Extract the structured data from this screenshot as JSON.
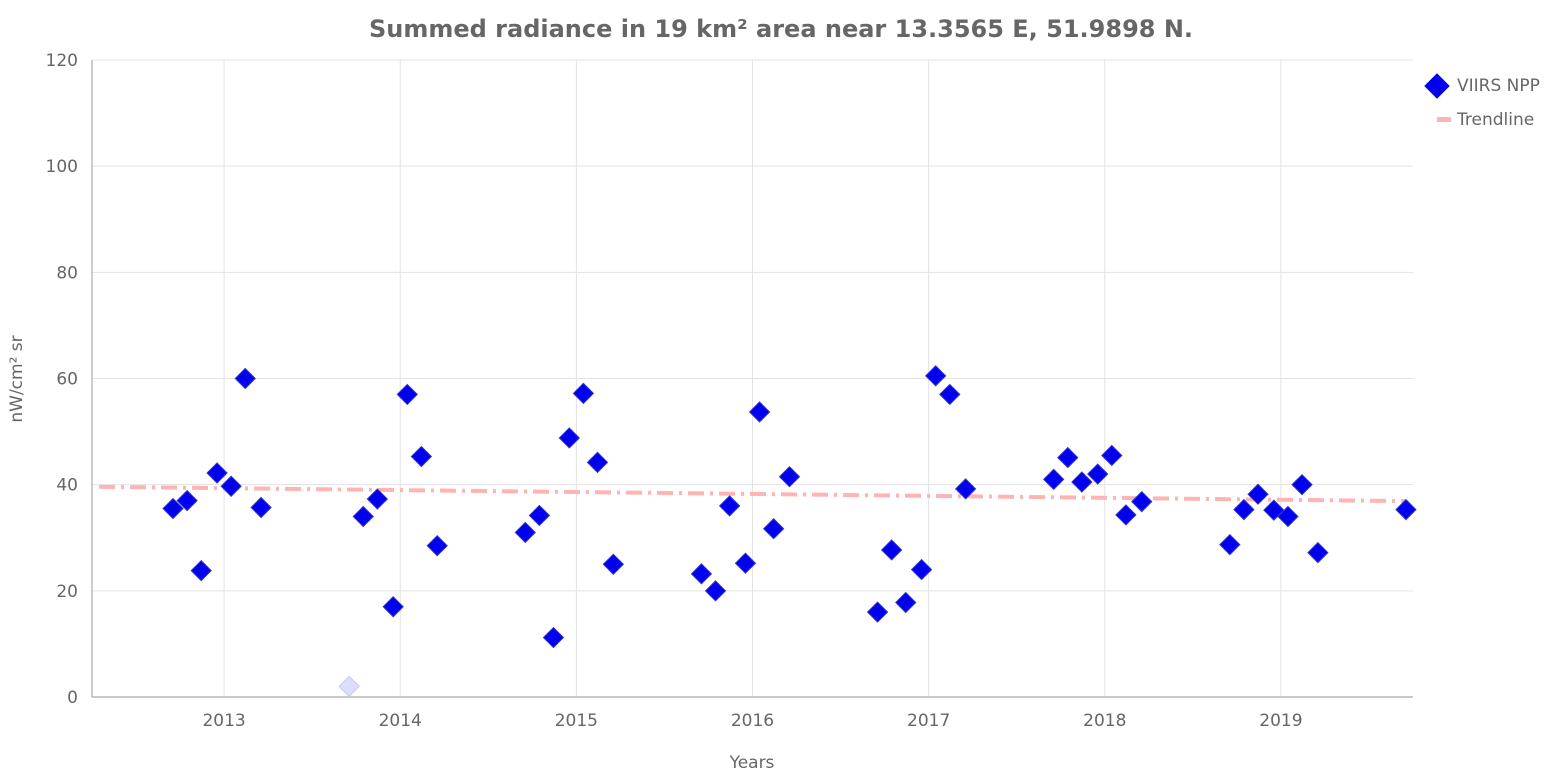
{
  "chart_data": {
    "type": "scatter",
    "title": "Summed radiance in 19 km² area near 13.3565 E, 51.9898 N.",
    "xlabel": "Years",
    "ylabel": "nW/cm² sr",
    "xlim": [
      2012.25,
      2019.75
    ],
    "ylim": [
      0,
      120
    ],
    "x_ticks": [
      2013,
      2014,
      2015,
      2016,
      2017,
      2018,
      2019
    ],
    "y_ticks": [
      0,
      20,
      40,
      60,
      80,
      100,
      120
    ],
    "grid": true,
    "legend_position": "top-right",
    "colors": {
      "marker": "#0000ee",
      "faded_marker": "#ddddff",
      "trendline": "#ffb3b3",
      "text": "#666666"
    },
    "series": [
      {
        "name": "VIIRS NPP",
        "marker": "diamond",
        "points": [
          {
            "x": 2012.71,
            "y": 35.5
          },
          {
            "x": 2012.79,
            "y": 37.0
          },
          {
            "x": 2012.87,
            "y": 23.8
          },
          {
            "x": 2012.96,
            "y": 42.2
          },
          {
            "x": 2013.04,
            "y": 39.7
          },
          {
            "x": 2013.12,
            "y": 60.0
          },
          {
            "x": 2013.21,
            "y": 35.7
          },
          {
            "x": 2013.79,
            "y": 34.0
          },
          {
            "x": 2013.87,
            "y": 37.3
          },
          {
            "x": 2013.96,
            "y": 17.0
          },
          {
            "x": 2014.04,
            "y": 57.0
          },
          {
            "x": 2014.12,
            "y": 45.3
          },
          {
            "x": 2014.21,
            "y": 28.5
          },
          {
            "x": 2014.71,
            "y": 31.0
          },
          {
            "x": 2014.79,
            "y": 34.2
          },
          {
            "x": 2014.87,
            "y": 11.2
          },
          {
            "x": 2014.96,
            "y": 48.8
          },
          {
            "x": 2015.04,
            "y": 57.2
          },
          {
            "x": 2015.12,
            "y": 44.2
          },
          {
            "x": 2015.21,
            "y": 25.0
          },
          {
            "x": 2015.71,
            "y": 23.2
          },
          {
            "x": 2015.79,
            "y": 20.0
          },
          {
            "x": 2015.87,
            "y": 36.0
          },
          {
            "x": 2015.96,
            "y": 25.2
          },
          {
            "x": 2016.04,
            "y": 53.7
          },
          {
            "x": 2016.12,
            "y": 31.7
          },
          {
            "x": 2016.21,
            "y": 41.5
          },
          {
            "x": 2016.71,
            "y": 16.0
          },
          {
            "x": 2016.79,
            "y": 27.7
          },
          {
            "x": 2016.87,
            "y": 17.8
          },
          {
            "x": 2016.96,
            "y": 24.0
          },
          {
            "x": 2017.04,
            "y": 60.5
          },
          {
            "x": 2017.12,
            "y": 57.0
          },
          {
            "x": 2017.21,
            "y": 39.2
          },
          {
            "x": 2017.71,
            "y": 41.0
          },
          {
            "x": 2017.79,
            "y": 45.1
          },
          {
            "x": 2017.87,
            "y": 40.5
          },
          {
            "x": 2017.96,
            "y": 42.0
          },
          {
            "x": 2018.04,
            "y": 45.5
          },
          {
            "x": 2018.12,
            "y": 34.3
          },
          {
            "x": 2018.21,
            "y": 36.8
          },
          {
            "x": 2018.71,
            "y": 28.7
          },
          {
            "x": 2018.79,
            "y": 35.3
          },
          {
            "x": 2018.87,
            "y": 38.2
          },
          {
            "x": 2018.96,
            "y": 35.2
          },
          {
            "x": 2019.04,
            "y": 34.0
          },
          {
            "x": 2019.12,
            "y": 40.0
          },
          {
            "x": 2019.21,
            "y": 27.2
          },
          {
            "x": 2019.71,
            "y": 35.3
          }
        ],
        "faded_points": [
          {
            "x": 2013.71,
            "y": 2.0
          }
        ]
      },
      {
        "name": "Trendline",
        "type": "line",
        "style": "dashed",
        "x": [
          2012.29,
          2019.71
        ],
        "y": [
          39.6,
          36.9
        ]
      }
    ]
  }
}
